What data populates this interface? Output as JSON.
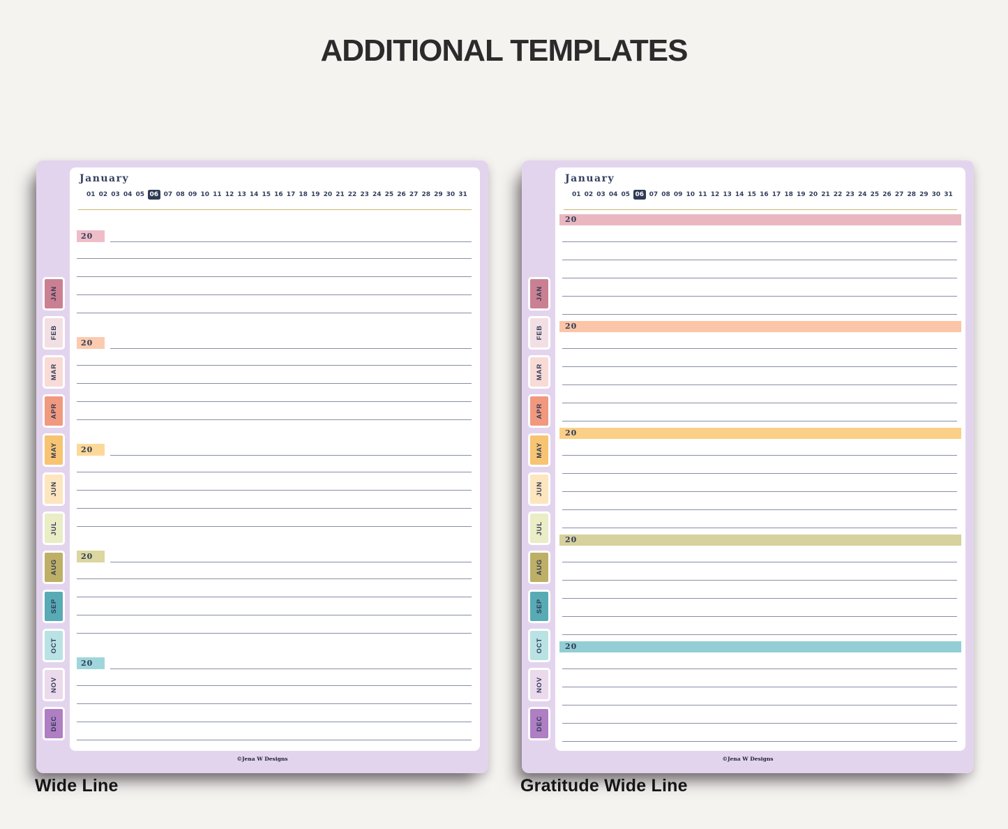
{
  "page_title": "ADDITIONAL TEMPLATES",
  "captions": {
    "left": "Wide Line",
    "right": "Gratitude Wide Line"
  },
  "planner": {
    "month_title": "January",
    "dates": [
      "01",
      "02",
      "03",
      "04",
      "05",
      "06",
      "07",
      "08",
      "09",
      "10",
      "11",
      "12",
      "13",
      "14",
      "15",
      "16",
      "17",
      "18",
      "19",
      "20",
      "21",
      "22",
      "23",
      "24",
      "25",
      "26",
      "27",
      "28",
      "29",
      "30",
      "31"
    ],
    "highlighted_date": "06",
    "year_prefix": "20",
    "copyright": "©Jena W Designs",
    "months": [
      {
        "label": "JAN",
        "color": "#ca8092"
      },
      {
        "label": "FEB",
        "color": "#f2dfe4"
      },
      {
        "label": "MAR",
        "color": "#f8dbd6"
      },
      {
        "label": "APR",
        "color": "#f0997f"
      },
      {
        "label": "MAY",
        "color": "#f6c472"
      },
      {
        "label": "JUN",
        "color": "#fce5bf"
      },
      {
        "label": "JUL",
        "color": "#eaedc5"
      },
      {
        "label": "AUG",
        "color": "#beaf66"
      },
      {
        "label": "SEP",
        "color": "#58abb5"
      },
      {
        "label": "OCT",
        "color": "#b9e2e4"
      },
      {
        "label": "NOV",
        "color": "#ebd9ec"
      },
      {
        "label": "DEC",
        "color": "#af7ec3"
      }
    ],
    "wide_line_highlight_colors": [
      "#efbdc8",
      "#fccaae",
      "#fcd999",
      "#dcd69f",
      "#9fd6db"
    ],
    "gratitude_bar_colors": [
      "#eab7c1",
      "#fbc5a7",
      "#fbcf88",
      "#d6d19d",
      "#93ced5"
    ],
    "colors": {
      "page_border": "#e3d4ee",
      "sheet": "#ffffff",
      "navy_text": "#2e3a56",
      "gold_divider": "#c9b46b",
      "ruled_line": "#878ea7",
      "date_highlight_bg": "#2e3a56",
      "date_highlight_text": "#ffffff",
      "background": "#f5f3f0"
    }
  }
}
